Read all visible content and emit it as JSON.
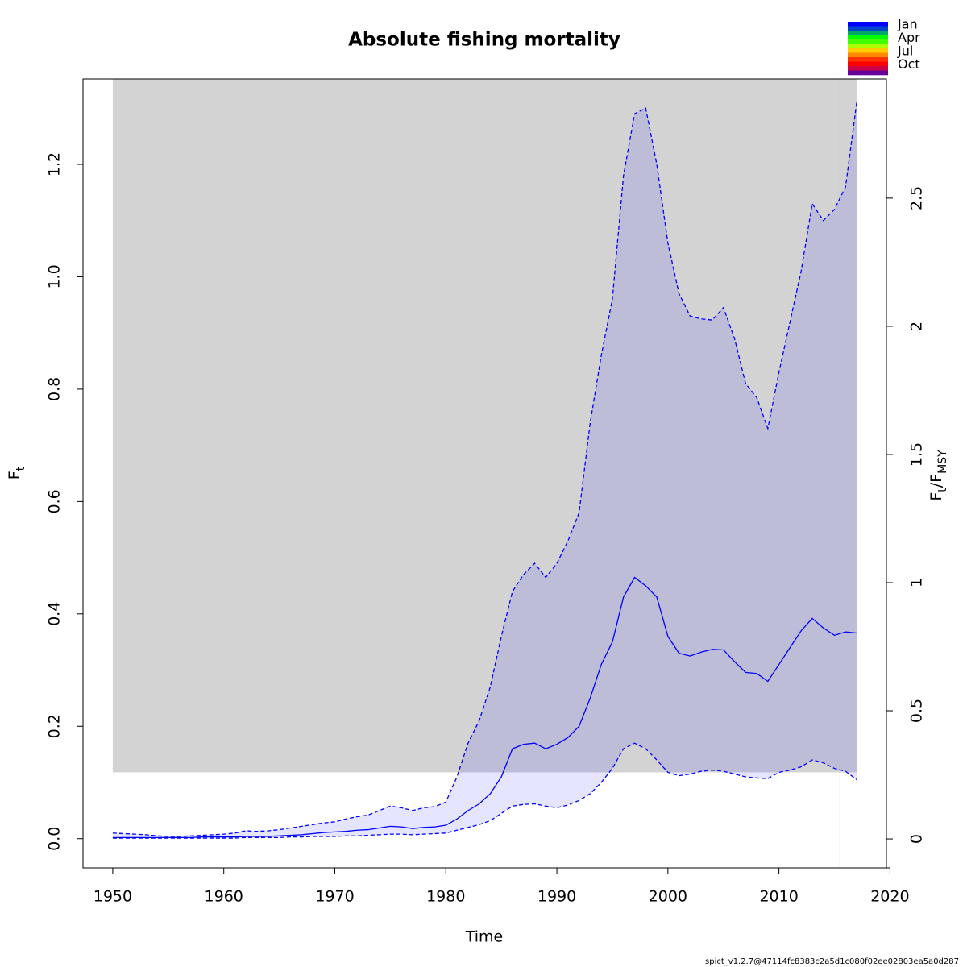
{
  "chart_data": {
    "type": "line",
    "title": "Absolute fishing mortality",
    "xlabel": "Time",
    "ylabel": [
      {
        "text": "F"
      },
      {
        "text": "t",
        "sub": true
      }
    ],
    "y2label": [
      {
        "text": "F"
      },
      {
        "text": "t",
        "sub": true
      },
      {
        "text": "/F"
      },
      {
        "text": "MSY",
        "sub": true
      }
    ],
    "footer": "spict_v1.2.7@47114fc8383c2a5d1c080f02ee02803ea5a0d287",
    "x": [
      1950,
      1951,
      1952,
      1953,
      1954,
      1955,
      1956,
      1957,
      1958,
      1959,
      1960,
      1961,
      1962,
      1963,
      1964,
      1965,
      1966,
      1967,
      1968,
      1969,
      1970,
      1971,
      1972,
      1973,
      1974,
      1975,
      1976,
      1977,
      1978,
      1979,
      1980,
      1981,
      1982,
      1983,
      1984,
      1985,
      1986,
      1987,
      1988,
      1989,
      1990,
      1991,
      1992,
      1993,
      1994,
      1995,
      1996,
      1997,
      1998,
      1999,
      2000,
      2001,
      2002,
      2003,
      2004,
      2005,
      2006,
      2007,
      2008,
      2009,
      2010,
      2011,
      2012,
      2013,
      2014,
      2015,
      2016,
      2017
    ],
    "series": [
      {
        "color": "blue",
        "dash": false,
        "values": [
          0.002,
          0.002,
          0.002,
          0.002,
          0.002,
          0.002,
          0.002,
          0.002,
          0.003,
          0.003,
          0.003,
          0.003,
          0.004,
          0.004,
          0.004,
          0.005,
          0.006,
          0.007,
          0.009,
          0.011,
          0.012,
          0.013,
          0.015,
          0.016,
          0.019,
          0.022,
          0.021,
          0.018,
          0.02,
          0.021,
          0.024,
          0.035,
          0.05,
          0.062,
          0.08,
          0.11,
          0.16,
          0.168,
          0.17,
          0.16,
          0.168,
          0.18,
          0.2,
          0.25,
          0.31,
          0.35,
          0.43,
          0.465,
          0.45,
          0.43,
          0.36,
          0.33,
          0.325,
          0.332,
          0.337,
          0.336,
          0.315,
          0.296,
          0.294,
          0.28,
          0.31,
          0.34,
          0.37,
          0.392,
          0.375,
          0.362,
          0.368,
          0.366
        ]
      },
      {
        "color": "blue",
        "dash": true,
        "values": [
          0.01,
          0.009,
          0.008,
          0.007,
          0.005,
          0.004,
          0.004,
          0.005,
          0.006,
          0.007,
          0.008,
          0.01,
          0.014,
          0.013,
          0.014,
          0.016,
          0.019,
          0.022,
          0.025,
          0.028,
          0.03,
          0.035,
          0.039,
          0.042,
          0.05,
          0.058,
          0.055,
          0.05,
          0.055,
          0.057,
          0.065,
          0.11,
          0.17,
          0.21,
          0.27,
          0.36,
          0.44,
          0.47,
          0.49,
          0.465,
          0.49,
          0.53,
          0.58,
          0.74,
          0.86,
          0.96,
          1.18,
          1.29,
          1.3,
          1.2,
          1.06,
          0.97,
          0.93,
          0.925,
          0.923,
          0.945,
          0.89,
          0.81,
          0.785,
          0.73,
          0.83,
          0.92,
          1.01,
          1.13,
          1.1,
          1.12,
          1.16,
          1.31
        ]
      },
      {
        "color": "blue",
        "dash": true,
        "values": [
          0.001,
          0.001,
          0.001,
          0.001,
          0.001,
          0.001,
          0.001,
          0.001,
          0.001,
          0.001,
          0.001,
          0.001,
          0.002,
          0.002,
          0.002,
          0.002,
          0.003,
          0.003,
          0.004,
          0.004,
          0.004,
          0.005,
          0.005,
          0.006,
          0.007,
          0.008,
          0.008,
          0.007,
          0.008,
          0.009,
          0.01,
          0.015,
          0.02,
          0.025,
          0.032,
          0.045,
          0.058,
          0.061,
          0.062,
          0.058,
          0.055,
          0.06,
          0.068,
          0.08,
          0.1,
          0.125,
          0.16,
          0.17,
          0.16,
          0.14,
          0.118,
          0.112,
          0.115,
          0.12,
          0.122,
          0.12,
          0.115,
          0.11,
          0.108,
          0.107,
          0.118,
          0.122,
          0.128,
          0.14,
          0.135,
          0.125,
          0.12,
          0.105
        ]
      }
    ],
    "band_color": "rgba(0,0,255,0.1)",
    "shade": {
      "x": [
        1950,
        2017
      ],
      "ymin": 0.118,
      "color": "#d3d3d3"
    },
    "ref_line": {
      "y": 0.455,
      "x": [
        1950,
        2017
      ]
    },
    "vline": 2015.5,
    "xlim": [
      1947.32,
      2019.68
    ],
    "xticks": [
      1950,
      1960,
      1970,
      1980,
      1990,
      2000,
      2010,
      2020
    ],
    "ylim": [
      -0.052,
      1.352
    ],
    "yticks": [
      {
        "value": 0,
        "label": "0.0"
      },
      0.2,
      0.4,
      0.6,
      0.8,
      {
        "value": 1,
        "label": "1.0"
      },
      1.2
    ],
    "y2lim": [
      -0.113,
      2.965
    ],
    "y2ticks": [
      0,
      0.5,
      1,
      1.5,
      2,
      2.5
    ],
    "months": {
      "labels": [
        "Jan",
        "Apr",
        "Jul",
        "Oct"
      ],
      "colors": [
        "#0000ff",
        "#0044cc",
        "#00aa66",
        "#00ff00",
        "#44ff00",
        "#aaff00",
        "#ffcc00",
        "#ff8800",
        "#ff3300",
        "#ff0000",
        "#cc0044",
        "#660099"
      ]
    }
  }
}
